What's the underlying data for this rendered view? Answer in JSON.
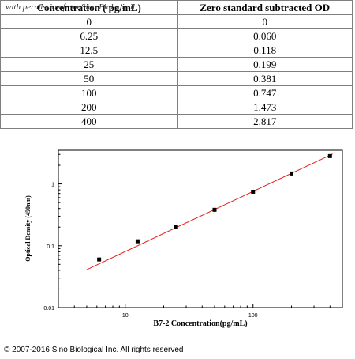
{
  "watermark": "with permission from Sino Biological",
  "table": {
    "headers": [
      "Concentration ( pg/mL)",
      "Zero standard subtracted OD"
    ],
    "rows": [
      [
        "0",
        "0"
      ],
      [
        "6.25",
        "0.060"
      ],
      [
        "12.5",
        "0.118"
      ],
      [
        "25",
        "0.199"
      ],
      [
        "50",
        "0.381"
      ],
      [
        "100",
        "0.747"
      ],
      [
        "200",
        "1.473"
      ],
      [
        "400",
        "2.817"
      ]
    ]
  },
  "chart_data": {
    "type": "scatter",
    "xlabel": "B7-2  Concentration(pg/mL)",
    "ylabel": "Optical Density (450nm)",
    "xscale": "log",
    "yscale": "log",
    "xlim": [
      3,
      500
    ],
    "ylim": [
      0.01,
      3.5
    ],
    "xticks": [
      10,
      100
    ],
    "xtick_labels": [
      "10",
      "100"
    ],
    "yticks": [
      0.01,
      0.1,
      1
    ],
    "ytick_labels": [
      "0.01",
      "0.1",
      "1"
    ],
    "points": {
      "x": [
        6.25,
        12.5,
        25,
        50,
        100,
        200,
        400
      ],
      "y": [
        0.06,
        0.118,
        0.199,
        0.381,
        0.747,
        1.473,
        2.817
      ]
    },
    "fit_line": {
      "x": [
        5,
        420
      ],
      "y": [
        0.041,
        3.05
      ],
      "color": "#e8201a"
    },
    "marker_color": "#000000",
    "grid": false
  },
  "footer": {
    "copyright": "© 2007-2016 Sino Biological Inc. All rights reserved"
  }
}
